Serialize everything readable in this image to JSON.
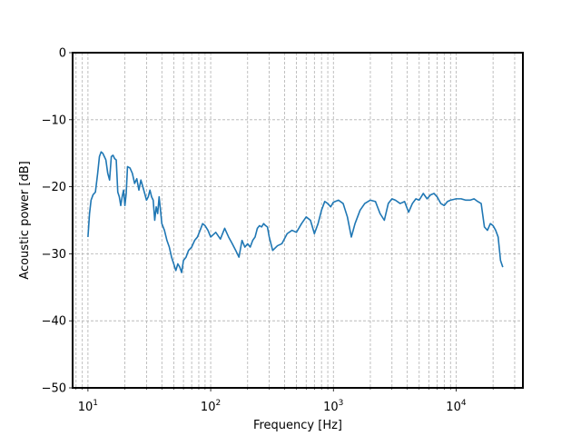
{
  "chart_data": {
    "type": "line",
    "xlabel": "Frequency [Hz]",
    "ylabel": "Acoustic power [dB]",
    "xscale": "log",
    "xlim": [
      7.5,
      35000
    ],
    "ylim": [
      -50,
      0
    ],
    "grid": "both major and minor, dashed",
    "line_color": "#1f77b4",
    "xticks": [
      {
        "value": 10,
        "base": "10",
        "exp": "1"
      },
      {
        "value": 100,
        "base": "10",
        "exp": "2"
      },
      {
        "value": 1000,
        "base": "10",
        "exp": "3"
      },
      {
        "value": 10000,
        "base": "10",
        "exp": "4"
      }
    ],
    "yticks": [
      {
        "value": 0,
        "label": "0"
      },
      {
        "value": -10,
        "label": "−10"
      },
      {
        "value": -20,
        "label": "−20"
      },
      {
        "value": -30,
        "label": "−30"
      },
      {
        "value": -40,
        "label": "−40"
      },
      {
        "value": -50,
        "label": "−50"
      }
    ],
    "series": [
      {
        "x": [
          10,
          10.3,
          10.6,
          11,
          11.5,
          12,
          12.4,
          12.8,
          13.2,
          13.6,
          14,
          14.5,
          15,
          15.5,
          16,
          16.5,
          17,
          17.5,
          18,
          18.5,
          19,
          19.5,
          20,
          20.5,
          21,
          22,
          23,
          24,
          25,
          26,
          27,
          28,
          29,
          30,
          31,
          32,
          33,
          34,
          35,
          36,
          37,
          38,
          39,
          40,
          42,
          44,
          46,
          48,
          50,
          52,
          54,
          56,
          58,
          60,
          63,
          66,
          70,
          74,
          78,
          82,
          86,
          90,
          95,
          100,
          110,
          120,
          130,
          140,
          150,
          160,
          170,
          180,
          190,
          200,
          210,
          220,
          230,
          240,
          250,
          260,
          270,
          280,
          290,
          300,
          320,
          350,
          380,
          420,
          460,
          500,
          550,
          600,
          650,
          700,
          750,
          800,
          850,
          900,
          950,
          1000,
          1100,
          1200,
          1300,
          1400,
          1500,
          1650,
          1800,
          2000,
          2200,
          2400,
          2600,
          2800,
          3000,
          3200,
          3500,
          3800,
          4100,
          4400,
          4700,
          5000,
          5400,
          5800,
          6200,
          6600,
          7000,
          7500,
          8000,
          8500,
          9000,
          10000,
          11000,
          12000,
          13000,
          14000,
          15000,
          16000,
          17000,
          18000,
          19000,
          20000,
          21000,
          22000,
          23000,
          24000
        ],
        "y": [
          -27.5,
          -24,
          -22,
          -21.2,
          -20.8,
          -18,
          -15.5,
          -14.8,
          -15,
          -15.5,
          -16,
          -18,
          -19,
          -15.5,
          -15.3,
          -15.8,
          -16,
          -20.8,
          -21.5,
          -22.8,
          -21.5,
          -20.5,
          -22.8,
          -21,
          -17,
          -17.2,
          -18,
          -19.5,
          -18.8,
          -20.5,
          -19,
          -20,
          -21,
          -22,
          -21.5,
          -20.5,
          -21.5,
          -22,
          -25,
          -23,
          -24,
          -21.5,
          -23.5,
          -25.5,
          -26.5,
          -28,
          -29,
          -30.5,
          -31.5,
          -32.5,
          -31.5,
          -32,
          -32.8,
          -31,
          -30.5,
          -29.5,
          -29,
          -28,
          -27.5,
          -26.5,
          -25.5,
          -25.8,
          -26.5,
          -27.5,
          -26.8,
          -27.8,
          -26.2,
          -27.5,
          -28.5,
          -29.5,
          -30.5,
          -28,
          -29,
          -28.5,
          -29,
          -28,
          -27.5,
          -26.2,
          -25.8,
          -26,
          -25.5,
          -25.8,
          -26,
          -27.5,
          -29.5,
          -28.8,
          -28.5,
          -27,
          -26.5,
          -26.8,
          -25.5,
          -24.5,
          -25,
          -27,
          -25.5,
          -23.5,
          -22.2,
          -22.5,
          -23,
          -22.3,
          -22,
          -22.5,
          -24.5,
          -27.5,
          -25.5,
          -23.5,
          -22.5,
          -22,
          -22.2,
          -24,
          -25,
          -22.5,
          -21.8,
          -22,
          -22.5,
          -22.2,
          -23.8,
          -22.5,
          -21.8,
          -22,
          -21,
          -21.8,
          -21.2,
          -21,
          -21.5,
          -22.5,
          -22.8,
          -22.2,
          -22,
          -21.8,
          -21.8,
          -22,
          -22,
          -21.8,
          -22.2,
          -22.5,
          -26,
          -26.5,
          -25.5,
          -25.8,
          -26.5,
          -27.5,
          -31,
          -32
        ]
      }
    ]
  }
}
